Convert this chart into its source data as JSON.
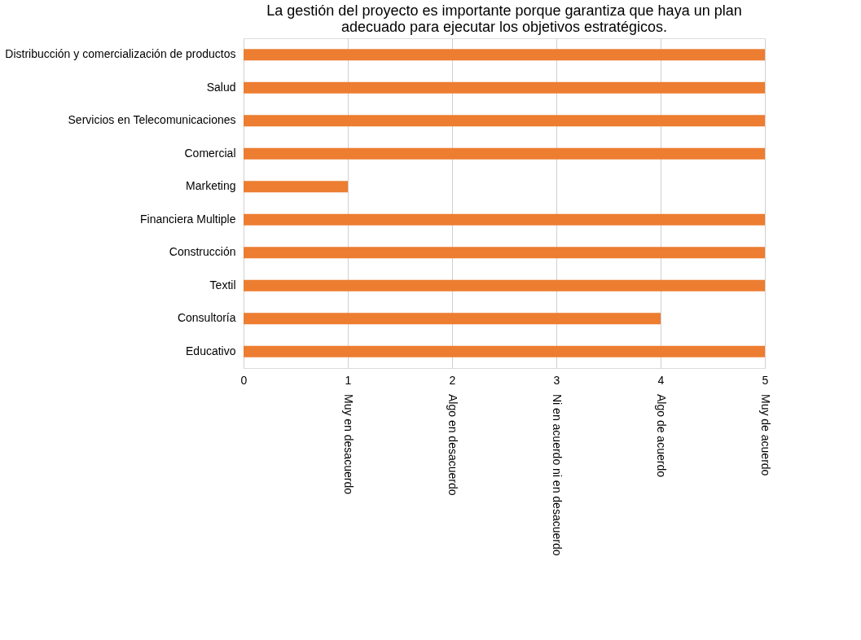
{
  "chart_data": {
    "type": "bar",
    "orientation": "horizontal",
    "title": "La gestión del proyecto es importante porque garantiza que haya un plan\nadecuado para ejecutar los objetivos estratégicos.",
    "categories": [
      "Distribucción y comercialización de productos",
      "Salud",
      "Servicios en Telecomunicaciones",
      "Comercial",
      "Marketing",
      "Financiera Multiple",
      "Construcción",
      "Textil",
      "Consultoría",
      "Educativo"
    ],
    "values": [
      5,
      5,
      5,
      5,
      1,
      5,
      5,
      5,
      4,
      5
    ],
    "color": "#ed7d31",
    "xlim": [
      0,
      5
    ],
    "xticks": [
      0,
      1,
      2,
      3,
      4,
      5
    ],
    "grid": "x",
    "annotations": [
      "Muy en desacuerdo",
      "Algo en desacuerdo",
      "Ni en acuerdo ni en desacuerdo",
      "Algo de acuerdo",
      "Muy de acuerdo"
    ]
  }
}
